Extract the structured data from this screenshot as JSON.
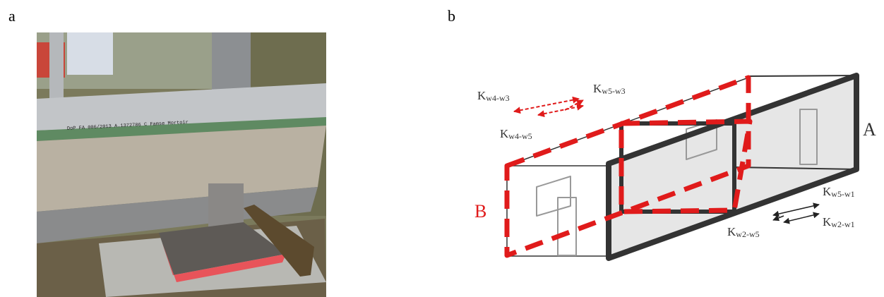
{
  "panels": {
    "a": "a",
    "b": "b"
  },
  "photo": {
    "stamp": "DoP FA 006/2013   A.1372786   C     Famse   Mortoir"
  },
  "diagram": {
    "room_a": "A",
    "room_b": "B",
    "labels": [
      {
        "base": "K",
        "sub": "w4-w3"
      },
      {
        "base": "K",
        "sub": "w5-w3"
      },
      {
        "base": "K",
        "sub": "w4-w5"
      },
      {
        "base": "K",
        "sub": "w5-w1"
      },
      {
        "base": "K",
        "sub": "w2-w5"
      },
      {
        "base": "K",
        "sub": "w2-w1"
      }
    ]
  }
}
